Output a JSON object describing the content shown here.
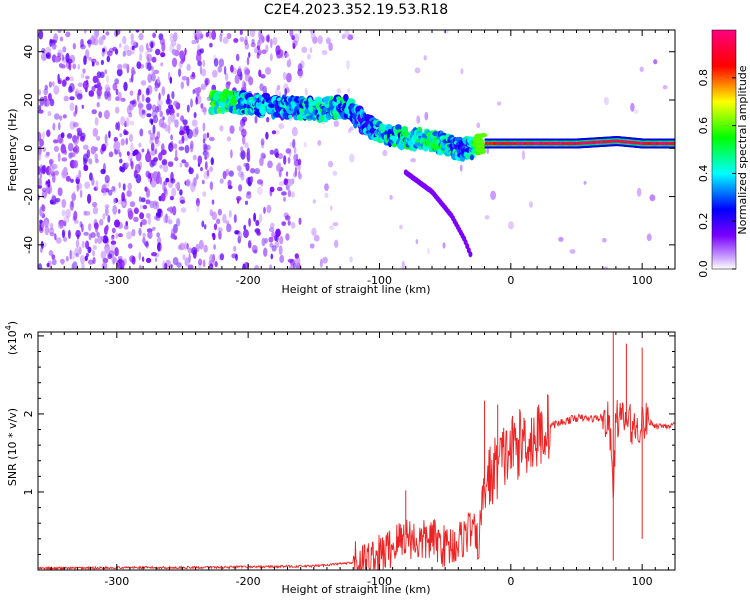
{
  "title": "C2E4.2023.352.19.53.R18",
  "chart_data": [
    {
      "type": "heatmap",
      "xlabel": "Height of straight line (km)",
      "ylabel": "Frequency (Hz)",
      "xlim": [
        -360,
        125
      ],
      "ylim": [
        -50,
        49
      ],
      "xticks": [
        -300,
        -200,
        -100,
        0,
        100
      ],
      "yticks": [
        -40,
        -20,
        0,
        20,
        40
      ],
      "colorbar": {
        "label": "Normalized spectral amplitude",
        "range": [
          0,
          1
        ],
        "ticks": [
          0.0,
          0.2,
          0.4,
          0.6,
          0.8
        ],
        "colors": [
          "#ffffff",
          "#7a00ff",
          "#0000ff",
          "#00ffff",
          "#00ff00",
          "#ffff00",
          "#ff0000",
          "#ff0080"
        ]
      },
      "ridge": {
        "x": [
          -225,
          -200,
          -175,
          -150,
          -125,
          -115,
          -100,
          -80,
          -60,
          -40,
          -30,
          -20,
          0,
          20,
          50,
          80,
          100,
          125
        ],
        "y": [
          19,
          19,
          17,
          16,
          17,
          12,
          7,
          4,
          3,
          0,
          0,
          2,
          2,
          2,
          2,
          3,
          2,
          2
        ],
        "amplitude": [
          0.55,
          0.4,
          0.35,
          0.45,
          0.4,
          0.3,
          0.4,
          0.45,
          0.5,
          0.35,
          0.4,
          0.9,
          0.95,
          0.95,
          0.95,
          0.95,
          0.95,
          0.95
        ]
      },
      "branch": {
        "x": [
          -80,
          -60,
          -45,
          -35,
          -30
        ],
        "y": [
          -10,
          -18,
          -28,
          -38,
          -45
        ]
      }
    },
    {
      "type": "line",
      "xlabel": "Height of straight line (km)",
      "ylabel": "SNR (10 * v/v)",
      "yscale_label": "(x10",
      "yscale_exp": "4",
      "yscale_close": ")",
      "xlim": [
        -360,
        125
      ],
      "ylim": [
        0,
        3.05
      ],
      "xticks": [
        -300,
        -200,
        -100,
        0,
        100
      ],
      "yticks": [
        1,
        2,
        3
      ],
      "color": "#ee2222",
      "x": [
        -360,
        -300,
        -250,
        -200,
        -150,
        -130,
        -110,
        -100,
        -90,
        -80,
        -70,
        -60,
        -50,
        -40,
        -30,
        -25,
        -20,
        -15,
        -10,
        0,
        10,
        20,
        30,
        40,
        50,
        60,
        70,
        75,
        78,
        80,
        90,
        95,
        100,
        105,
        110,
        125
      ],
      "y": [
        0.02,
        0.03,
        0.03,
        0.04,
        0.05,
        0.08,
        0.1,
        0.18,
        0.3,
        0.45,
        0.35,
        0.4,
        0.3,
        0.35,
        0.55,
        0.3,
        1.1,
        1.2,
        1.35,
        1.55,
        1.65,
        1.7,
        1.85,
        1.9,
        1.95,
        1.94,
        1.95,
        1.9,
        1.0,
        1.95,
        1.9,
        1.8,
        1.9,
        1.9,
        1.85,
        1.85
      ],
      "peaks": [
        {
          "x": -80,
          "y": 1.02
        },
        {
          "x": -20,
          "y": 2.17
        },
        {
          "x": -10,
          "y": 2.12
        },
        {
          "x": 10,
          "y": 1.95
        },
        {
          "x": 28,
          "y": 2.25
        },
        {
          "x": 78,
          "y": 3.05
        },
        {
          "x": 78,
          "y": 0.12
        },
        {
          "x": 88,
          "y": 2.9
        },
        {
          "x": 100,
          "y": 2.85
        },
        {
          "x": 100,
          "y": 0.4
        }
      ]
    }
  ]
}
